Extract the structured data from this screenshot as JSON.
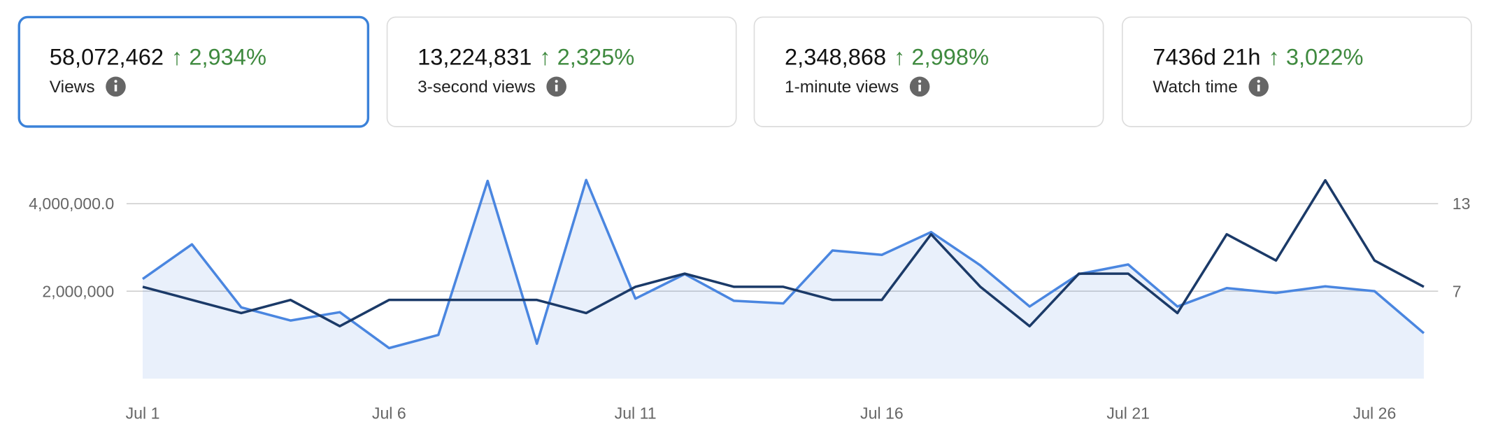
{
  "cards": [
    {
      "value": "58,072,462",
      "change": "↑ 2,934%",
      "label": "Views",
      "selected": true
    },
    {
      "value": "13,224,831",
      "change": "↑ 2,325%",
      "label": "3-second views",
      "selected": false
    },
    {
      "value": "2,348,868",
      "change": "↑ 2,998%",
      "label": "1-minute views",
      "selected": false
    },
    {
      "value": "7436d 21h",
      "change": "↑ 3,022%",
      "label": "Watch time",
      "selected": false
    }
  ],
  "chart_data": {
    "type": "line",
    "categories": [
      "Jul 1",
      null,
      null,
      null,
      null,
      "Jul 6",
      null,
      null,
      null,
      null,
      "Jul 11",
      null,
      null,
      null,
      null,
      "Jul 16",
      null,
      null,
      null,
      null,
      "Jul 21",
      null,
      null,
      null,
      null,
      "Jul 26",
      null
    ],
    "series": [
      {
        "color": "#4a86e0",
        "area": true,
        "values": [
          2280000,
          3070000,
          1630000,
          1330000,
          1520000,
          700000,
          1000000,
          4520000,
          800000,
          4540000,
          1830000,
          2390000,
          1780000,
          1720000,
          2930000,
          2830000,
          3350000,
          2590000,
          1650000,
          2390000,
          2610000,
          1650000,
          2070000,
          1960000,
          2110000,
          2000000,
          1040000
        ]
      },
      {
        "color": "#1b3a68",
        "axis": "y2",
        "values": [
          7.3,
          6.4,
          5.5,
          6.4,
          4.6,
          6.4,
          6.4,
          6.4,
          6.4,
          5.5,
          7.3,
          8.2,
          7.3,
          7.3,
          6.4,
          6.4,
          10.9,
          7.3,
          4.6,
          8.2,
          8.2,
          5.5,
          10.9,
          9.1,
          14.6,
          9.1,
          7.3
        ]
      }
    ],
    "ylim": [
      0,
      4600000
    ],
    "yticks": [
      {
        "value": 2000000,
        "label": "2,000,000"
      },
      {
        "value": 4000000,
        "label": "4,000,000.0"
      }
    ],
    "y2lim": [
      1,
      14.8
    ],
    "y2ticks": [
      7,
      13
    ],
    "grid": true
  }
}
